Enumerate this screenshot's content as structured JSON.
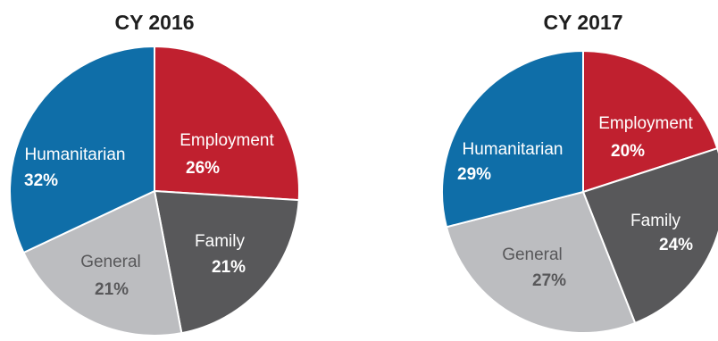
{
  "chart_data": [
    {
      "type": "pie",
      "title": "CY 2016",
      "slices": [
        {
          "label": "Employment",
          "value": 26,
          "value_label": "26%",
          "color": "#c0202f"
        },
        {
          "label": "Family",
          "value": 21,
          "value_label": "21%",
          "color": "#58585a"
        },
        {
          "label": "General",
          "value": 21,
          "value_label": "21%",
          "color": "#bcbdc0"
        },
        {
          "label": "Humanitarian",
          "value": 32,
          "value_label": "32%",
          "color": "#0f6ea8"
        }
      ],
      "legend": "none",
      "labels": "inside"
    },
    {
      "type": "pie",
      "title": "CY 2017",
      "slices": [
        {
          "label": "Employment",
          "value": 20,
          "value_label": "20%",
          "color": "#c0202f"
        },
        {
          "label": "Family",
          "value": 24,
          "value_label": "24%",
          "color": "#58585a"
        },
        {
          "label": "General",
          "value": 27,
          "value_label": "27%",
          "color": "#bcbdc0"
        },
        {
          "label": "Humanitarian",
          "value": 29,
          "value_label": "29%",
          "color": "#0f6ea8"
        }
      ],
      "legend": "none",
      "labels": "inside"
    }
  ]
}
